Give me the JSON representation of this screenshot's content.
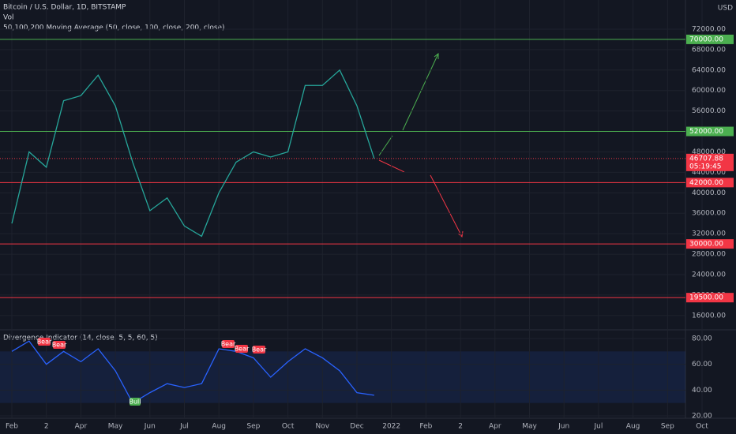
{
  "header": {
    "symbol": "Bitcoin / U.S. Dollar, 1D, BITSTAMP",
    "volume": "Vol",
    "moving_average": "50,100,200 Moving Average (50, close, 100, close, 200, close)",
    "currency": "USD",
    "countdown": "05:19:45"
  },
  "chart_data": [
    {
      "type": "line",
      "title": "Bitcoin / U.S. Dollar, 1D, BITSTAMP",
      "categories": [
        "Feb",
        null,
        "2",
        null,
        "Apr",
        null,
        "May",
        null,
        "Jun",
        null,
        "Jul",
        null,
        "Aug",
        null,
        "Sep",
        null,
        "Oct",
        null,
        "Nov",
        null,
        "Dec",
        null,
        "2022",
        null,
        "Feb",
        null,
        "2",
        null,
        "Apr",
        null,
        "May",
        null,
        "Jun",
        null,
        "Jul",
        null,
        "Aug",
        null,
        "Sep",
        null,
        "Oct"
      ],
      "series": [
        {
          "color": "#26a69a",
          "values": [
            34000,
            48000,
            45000,
            58000,
            59000,
            63000,
            57000,
            46000,
            36500,
            39000,
            33500,
            31500,
            40000,
            46000,
            48000,
            47000,
            48000,
            61000,
            61000,
            64000,
            57000,
            46700,
            null,
            null,
            null,
            null,
            null,
            null,
            null,
            null,
            null,
            null,
            null,
            null,
            null,
            null,
            null,
            null,
            null,
            null,
            null
          ]
        }
      ],
      "ylim": [
        13200,
        77700
      ],
      "yticks": [
        {
          "value": 16000,
          "label": "16000.00"
        },
        {
          "value": 20000,
          "label": "20000.00"
        },
        {
          "value": 24000,
          "label": "24000.00"
        },
        {
          "value": 28000,
          "label": "28000.00"
        },
        {
          "value": 32000,
          "label": "32000.00"
        },
        {
          "value": 36000,
          "label": "36000.00"
        },
        {
          "value": 40000,
          "label": "40000.00"
        },
        {
          "value": 44000,
          "label": "44000.00"
        },
        {
          "value": 48000,
          "label": "48000.00"
        },
        {
          "value": 56000,
          "label": "56000.00"
        },
        {
          "value": 60000,
          "label": "60000.00"
        },
        {
          "value": 64000,
          "label": "64000.00"
        },
        {
          "value": 68000,
          "label": "68000.00"
        },
        {
          "value": 72000,
          "label": "72000.00"
        }
      ],
      "levels": [
        {
          "value": 70000,
          "label": "70000.00",
          "color": "#4caf50"
        },
        {
          "value": 52000,
          "label": "52000.00",
          "color": "#4caf50"
        },
        {
          "value": 42000,
          "label": "42000.00",
          "color": "#f23645"
        },
        {
          "value": 30000,
          "label": "30000.00",
          "color": "#f23645"
        },
        {
          "value": 19500,
          "label": "19500.00",
          "color": "#f23645"
        }
      ],
      "last_price": 46707.88,
      "grid": true
    },
    {
      "type": "line",
      "title": "Divergence Indicator (14, close, 5, 5, 60, 5)",
      "series": [
        {
          "color": "#2962ff",
          "values": [
            70,
            78,
            60,
            70,
            62,
            72,
            55,
            30,
            38,
            45,
            42,
            45,
            72,
            70,
            65,
            50,
            62,
            72,
            65,
            55,
            38,
            36,
            null,
            null,
            null,
            null,
            null,
            null,
            null,
            null,
            null,
            null,
            null,
            null,
            null,
            null,
            null,
            null,
            null,
            null,
            null
          ]
        }
      ],
      "ylim": [
        18.2,
        86.7
      ],
      "yticks": [
        {
          "value": 20,
          "label": "20.00"
        },
        {
          "value": 40,
          "label": "40.00"
        },
        {
          "value": 60,
          "label": "60.00"
        },
        {
          "value": 80,
          "label": "80.00"
        }
      ],
      "band": [
        30,
        70
      ],
      "signals": [
        "Bear",
        "Bear",
        "Bear",
        "Bear",
        "Bear",
        "Bull"
      ]
    }
  ]
}
